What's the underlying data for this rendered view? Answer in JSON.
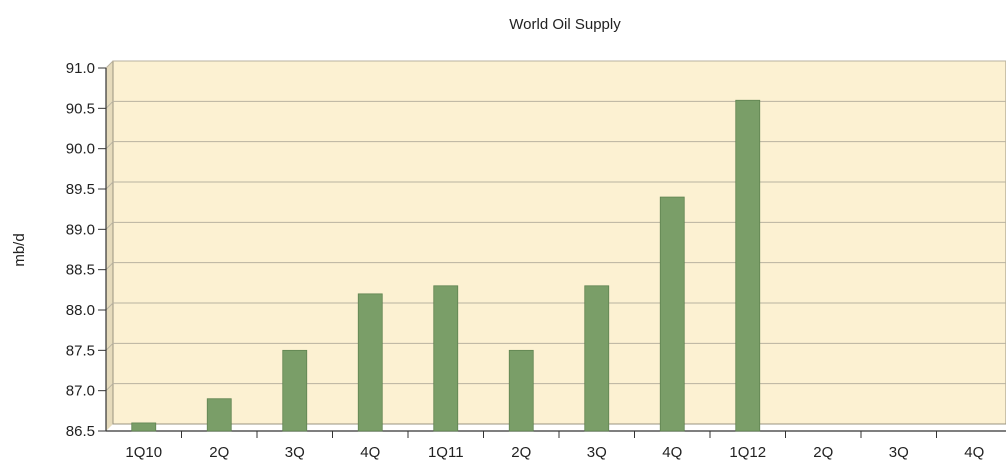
{
  "chart_data": {
    "type": "bar",
    "title": "World Oil Supply",
    "xlabel": "",
    "ylabel": "mb/d",
    "categories": [
      "1Q10",
      "2Q",
      "3Q",
      "4Q",
      "1Q11",
      "2Q",
      "3Q",
      "4Q",
      "1Q12",
      "2Q",
      "3Q",
      "4Q"
    ],
    "values": [
      86.6,
      86.9,
      87.5,
      88.2,
      88.3,
      87.5,
      88.3,
      89.4,
      90.6,
      null,
      null,
      null
    ],
    "ylim": [
      86.5,
      91.0
    ],
    "yticks": [
      "86.5",
      "87.0",
      "87.5",
      "88.0",
      "88.5",
      "89.0",
      "89.5",
      "90.0",
      "90.5",
      "91.0"
    ],
    "grid": true,
    "legend": "none",
    "colors": {
      "bar": "#7a9e68",
      "bar_edge": "#5f8350",
      "plot_background": "#fcf1d2",
      "gridline": "#b9b2a0",
      "axis": "#333333"
    }
  }
}
